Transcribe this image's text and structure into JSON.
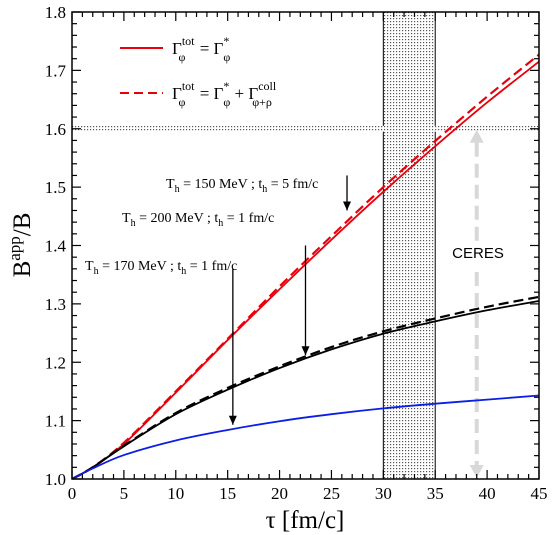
{
  "chart_data": {
    "type": "line",
    "xlabel": "τ  [fm/c]",
    "ylabel": "Bapp/B",
    "xlim": [
      0,
      45
    ],
    "ylim": [
      1.0,
      1.8
    ],
    "x_ticks": [
      "0",
      "5",
      "10",
      "15",
      "20",
      "25",
      "30",
      "35",
      "40",
      "45"
    ],
    "y_ticks": [
      "1.0",
      "1.1",
      "1.2",
      "1.3",
      "1.4",
      "1.5",
      "1.6",
      "1.7",
      "1.8"
    ],
    "grid": false,
    "legend_position": "top-left",
    "legend": [
      {
        "style": "solid",
        "color": "#e8000b",
        "text_main": "Γ",
        "sup1": "tot",
        "sub1": "φ",
        "eq": " = Γ",
        "sup2": "*",
        "sub2": "φ",
        "extra": ""
      },
      {
        "style": "dashed",
        "color": "#e8000b",
        "text_main": "Γ",
        "sup1": "tot",
        "sub1": "φ",
        "eq": " = Γ",
        "sup2": "*",
        "sub2": "φ",
        "extra": " + Γ",
        "sup3": "coll",
        "sub3": "φ+ρ"
      }
    ],
    "series": [
      {
        "color": "#e8000b",
        "style": "solid",
        "x": [
          0,
          2,
          5,
          10,
          15,
          20,
          25,
          30,
          35,
          40,
          45
        ],
        "y": [
          1.0,
          1.02,
          1.06,
          1.148,
          1.238,
          1.325,
          1.41,
          1.492,
          1.57,
          1.645,
          1.715
        ]
      },
      {
        "color": "#e8000b",
        "style": "dashed",
        "x": [
          0,
          2,
          5,
          10,
          15,
          20,
          25,
          30,
          35,
          40,
          45
        ],
        "y": [
          1.0,
          1.02,
          1.062,
          1.15,
          1.24,
          1.33,
          1.416,
          1.5,
          1.579,
          1.655,
          1.727
        ]
      },
      {
        "color": "#000000",
        "style": "solid",
        "x": [
          0,
          2,
          5,
          10,
          15,
          20,
          25,
          30,
          35,
          40,
          45
        ],
        "y": [
          1.0,
          1.02,
          1.056,
          1.111,
          1.153,
          1.19,
          1.222,
          1.249,
          1.27,
          1.289,
          1.305
        ]
      },
      {
        "color": "#000000",
        "style": "dashed",
        "x": [
          0,
          2,
          5,
          10,
          15,
          20,
          25,
          30,
          35,
          40,
          45
        ],
        "y": [
          1.0,
          1.02,
          1.057,
          1.113,
          1.156,
          1.193,
          1.226,
          1.253,
          1.275,
          1.295,
          1.312
        ]
      },
      {
        "color": "#0a1ee6",
        "style": "solid",
        "x": [
          0,
          2,
          5,
          10,
          15,
          20,
          25,
          30,
          35,
          40,
          45
        ],
        "y": [
          1.0,
          1.018,
          1.041,
          1.066,
          1.084,
          1.099,
          1.111,
          1.121,
          1.129,
          1.136,
          1.143
        ]
      }
    ],
    "annotations": [
      {
        "T": "T",
        "Tsub": "h",
        "T_rest": " = 150 MeV ; t",
        "tsub": "h",
        "t_rest": " = 5 fm/c",
        "arrow_from": [
          26.5,
          1.52
        ],
        "arrow_to": [
          26.5,
          1.46
        ]
      },
      {
        "T": "T",
        "Tsub": "h",
        "T_rest": " = 200 MeV ; t",
        "tsub": "h",
        "t_rest": " = 1 fm/c",
        "arrow_from": [
          22.5,
          1.4
        ],
        "arrow_to": [
          22.5,
          1.212
        ]
      },
      {
        "T": "T",
        "Tsub": "h",
        "T_rest": " = 170 MeV ; t",
        "tsub": "h",
        "t_rest": " = 1 fm/c",
        "arrow_from": [
          15.5,
          1.36
        ],
        "arrow_to": [
          15.5,
          1.093
        ]
      }
    ],
    "shaded_regions": [
      {
        "kind": "vertical-band",
        "x_range": [
          30,
          35
        ]
      },
      {
        "kind": "horizontal-band",
        "y_range": [
          1.595,
          1.605
        ]
      }
    ],
    "ceres": {
      "label": "CERES",
      "x": 39,
      "y_range": [
        1.0,
        1.6
      ]
    }
  }
}
